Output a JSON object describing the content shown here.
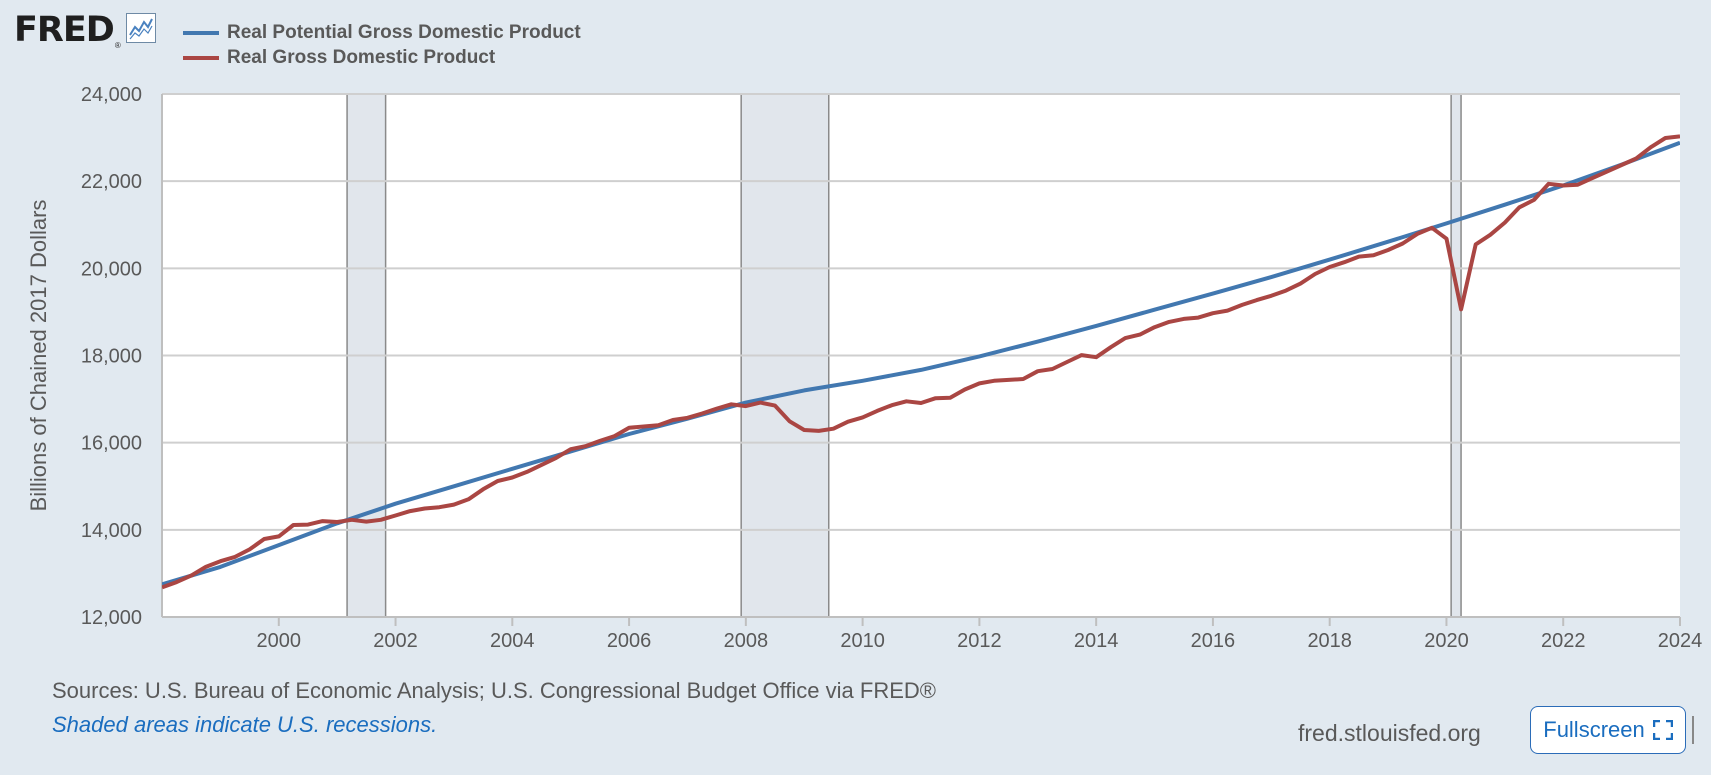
{
  "logo": {
    "text": "FRED",
    "reg": "®",
    "icon": "line-chart-icon"
  },
  "chart_data": {
    "type": "line",
    "ylabel": "Billions of Chained 2017 Dollars",
    "xlabel": "",
    "ylim": [
      12000,
      24000
    ],
    "xlim": [
      1998.0,
      2024.0
    ],
    "y_ticks": [
      12000,
      14000,
      16000,
      18000,
      20000,
      22000,
      24000
    ],
    "y_tick_labels": [
      "12,000",
      "14,000",
      "16,000",
      "18,000",
      "20,000",
      "22,000",
      "24,000"
    ],
    "x_ticks": [
      2000,
      2002,
      2004,
      2006,
      2008,
      2010,
      2012,
      2014,
      2016,
      2018,
      2020,
      2022,
      2024
    ],
    "x_tick_labels": [
      "2000",
      "2002",
      "2004",
      "2006",
      "2008",
      "2010",
      "2012",
      "2014",
      "2016",
      "2018",
      "2020",
      "2022",
      "2024"
    ],
    "grid": true,
    "legend_placement": "top-left",
    "recessions": [
      [
        2001.17,
        2001.83
      ],
      [
        2007.92,
        2009.42
      ],
      [
        2020.08,
        2020.25
      ]
    ],
    "series": [
      {
        "name": "Real Potential Gross Domestic Product",
        "color": "#4278b0",
        "points": [
          [
            1998.0,
            12750
          ],
          [
            1999.0,
            13150
          ],
          [
            2000.0,
            13650
          ],
          [
            2001.0,
            14150
          ],
          [
            2002.0,
            14600
          ],
          [
            2003.0,
            15000
          ],
          [
            2004.0,
            15400
          ],
          [
            2005.0,
            15800
          ],
          [
            2006.0,
            16200
          ],
          [
            2007.0,
            16550
          ],
          [
            2008.0,
            16920
          ],
          [
            2009.0,
            17200
          ],
          [
            2010.0,
            17420
          ],
          [
            2011.0,
            17670
          ],
          [
            2012.0,
            17980
          ],
          [
            2013.0,
            18320
          ],
          [
            2014.0,
            18680
          ],
          [
            2015.0,
            19050
          ],
          [
            2016.0,
            19420
          ],
          [
            2017.0,
            19800
          ],
          [
            2018.0,
            20200
          ],
          [
            2019.0,
            20610
          ],
          [
            2020.0,
            21030
          ],
          [
            2021.0,
            21460
          ],
          [
            2022.0,
            21900
          ],
          [
            2023.0,
            22380
          ],
          [
            2024.0,
            22880
          ]
        ]
      },
      {
        "name": "Real Gross Domestic Product",
        "color": "#aa4643",
        "points": [
          [
            1998.0,
            12680
          ],
          [
            1998.25,
            12800
          ],
          [
            1998.5,
            12950
          ],
          [
            1998.75,
            13150
          ],
          [
            1999.0,
            13280
          ],
          [
            1999.25,
            13380
          ],
          [
            1999.5,
            13550
          ],
          [
            1999.75,
            13790
          ],
          [
            2000.0,
            13850
          ],
          [
            2000.25,
            14110
          ],
          [
            2000.5,
            14120
          ],
          [
            2000.75,
            14200
          ],
          [
            2001.0,
            14180
          ],
          [
            2001.25,
            14230
          ],
          [
            2001.5,
            14190
          ],
          [
            2001.75,
            14230
          ],
          [
            2002.0,
            14330
          ],
          [
            2002.25,
            14430
          ],
          [
            2002.5,
            14490
          ],
          [
            2002.75,
            14520
          ],
          [
            2003.0,
            14580
          ],
          [
            2003.25,
            14700
          ],
          [
            2003.5,
            14930
          ],
          [
            2003.75,
            15120
          ],
          [
            2004.0,
            15200
          ],
          [
            2004.25,
            15330
          ],
          [
            2004.5,
            15490
          ],
          [
            2004.75,
            15650
          ],
          [
            2005.0,
            15850
          ],
          [
            2005.25,
            15920
          ],
          [
            2005.5,
            16040
          ],
          [
            2005.75,
            16150
          ],
          [
            2006.0,
            16340
          ],
          [
            2006.25,
            16370
          ],
          [
            2006.5,
            16400
          ],
          [
            2006.75,
            16520
          ],
          [
            2007.0,
            16570
          ],
          [
            2007.25,
            16670
          ],
          [
            2007.5,
            16780
          ],
          [
            2007.75,
            16880
          ],
          [
            2008.0,
            16840
          ],
          [
            2008.25,
            16920
          ],
          [
            2008.5,
            16850
          ],
          [
            2008.75,
            16490
          ],
          [
            2009.0,
            16290
          ],
          [
            2009.25,
            16270
          ],
          [
            2009.5,
            16320
          ],
          [
            2009.75,
            16480
          ],
          [
            2010.0,
            16580
          ],
          [
            2010.25,
            16730
          ],
          [
            2010.5,
            16860
          ],
          [
            2010.75,
            16950
          ],
          [
            2011.0,
            16910
          ],
          [
            2011.25,
            17020
          ],
          [
            2011.5,
            17030
          ],
          [
            2011.75,
            17220
          ],
          [
            2012.0,
            17360
          ],
          [
            2012.25,
            17420
          ],
          [
            2012.5,
            17440
          ],
          [
            2012.75,
            17460
          ],
          [
            2013.0,
            17640
          ],
          [
            2013.25,
            17690
          ],
          [
            2013.5,
            17850
          ],
          [
            2013.75,
            18010
          ],
          [
            2014.0,
            17960
          ],
          [
            2014.25,
            18190
          ],
          [
            2014.5,
            18400
          ],
          [
            2014.75,
            18480
          ],
          [
            2015.0,
            18650
          ],
          [
            2015.25,
            18770
          ],
          [
            2015.5,
            18840
          ],
          [
            2015.75,
            18870
          ],
          [
            2016.0,
            18970
          ],
          [
            2016.25,
            19030
          ],
          [
            2016.5,
            19160
          ],
          [
            2016.75,
            19270
          ],
          [
            2017.0,
            19370
          ],
          [
            2017.25,
            19490
          ],
          [
            2017.5,
            19650
          ],
          [
            2017.75,
            19870
          ],
          [
            2018.0,
            20030
          ],
          [
            2018.25,
            20140
          ],
          [
            2018.5,
            20270
          ],
          [
            2018.75,
            20300
          ],
          [
            2019.0,
            20420
          ],
          [
            2019.25,
            20570
          ],
          [
            2019.5,
            20790
          ],
          [
            2019.75,
            20930
          ],
          [
            2020.0,
            20680
          ],
          [
            2020.25,
            19060
          ],
          [
            2020.5,
            20550
          ],
          [
            2020.75,
            20770
          ],
          [
            2021.0,
            21050
          ],
          [
            2021.25,
            21400
          ],
          [
            2021.5,
            21570
          ],
          [
            2021.75,
            21940
          ],
          [
            2022.0,
            21900
          ],
          [
            2022.25,
            21920
          ],
          [
            2022.5,
            22070
          ],
          [
            2022.75,
            22220
          ],
          [
            2023.0,
            22370
          ],
          [
            2023.25,
            22520
          ],
          [
            2023.5,
            22780
          ],
          [
            2023.75,
            22990
          ],
          [
            2024.0,
            23030
          ]
        ]
      }
    ]
  },
  "footer": {
    "sources": "Sources: U.S. Bureau of Economic Analysis; U.S. Congressional Budget Office via FRED®",
    "note": "Shaded areas indicate U.S. recessions.",
    "site": "fred.stlouisfed.org",
    "fullscreen_label": "Fullscreen",
    "fullscreen_icon": "expand-icon"
  }
}
